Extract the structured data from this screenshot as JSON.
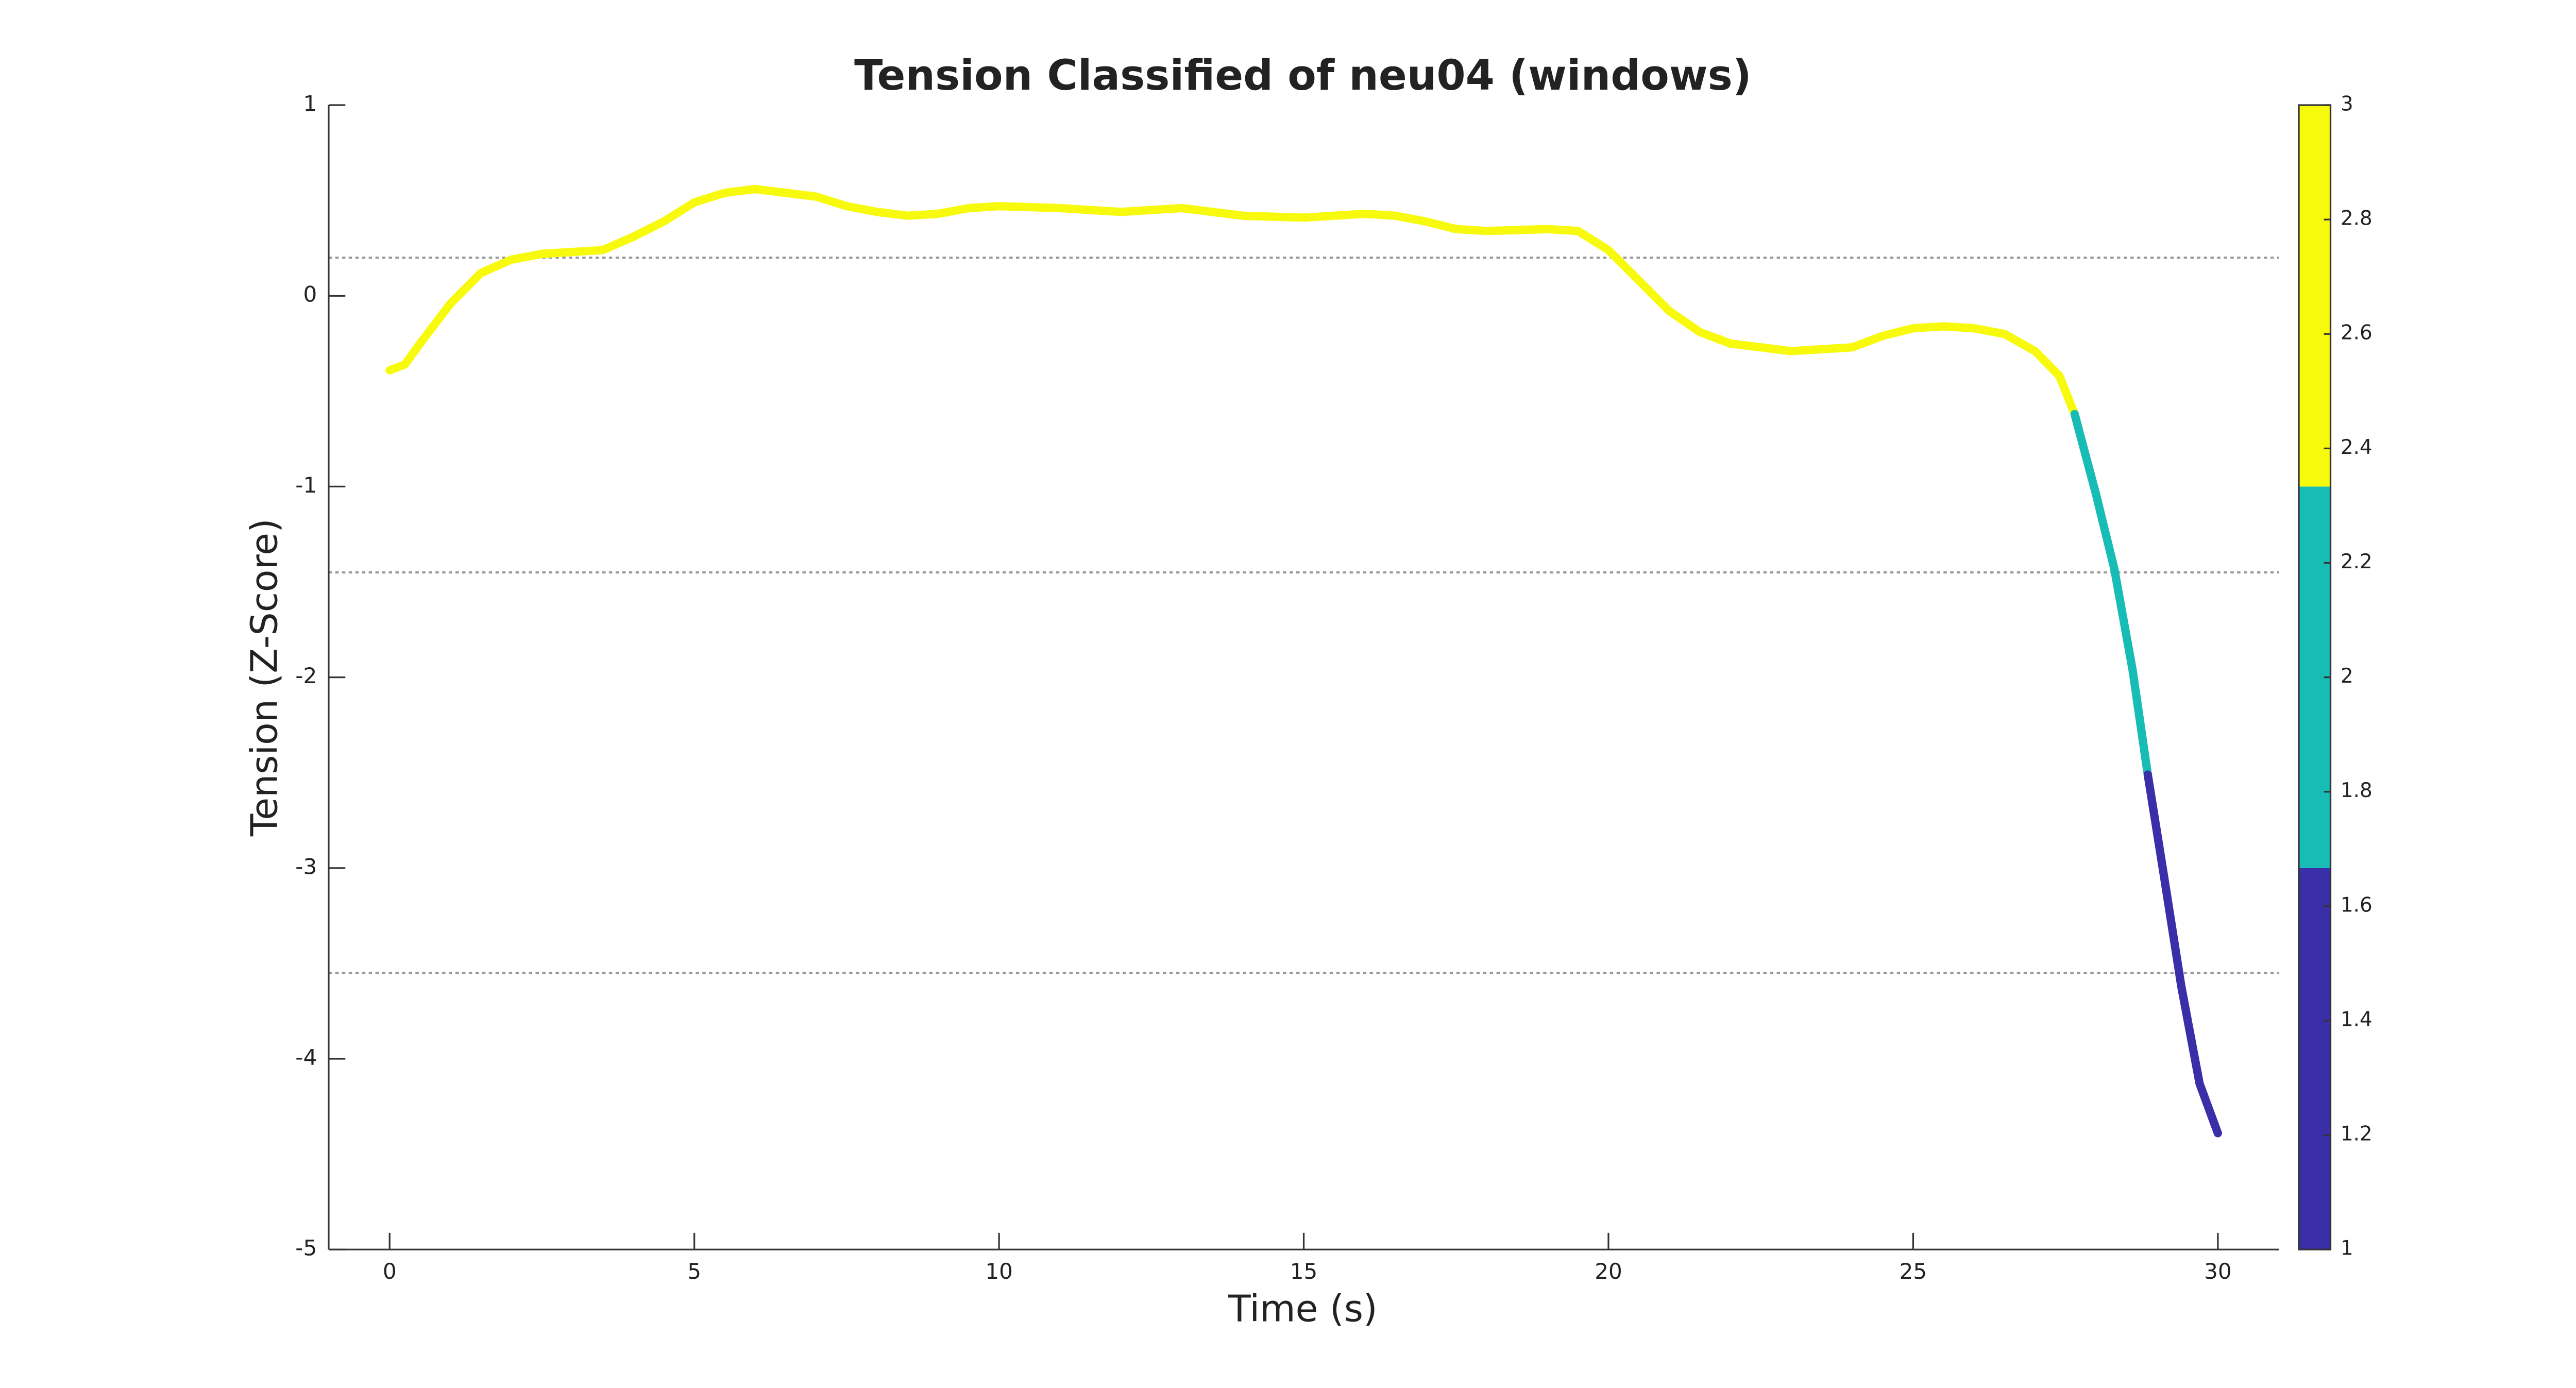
{
  "chart_data": {
    "type": "line",
    "title": "Tension Classified of neu04 (windows)",
    "xlabel": "Time (s)",
    "ylabel": "Tension (Z-Score)",
    "xlim": [
      -1,
      31
    ],
    "xticks": [
      0,
      5,
      10,
      15,
      20,
      25,
      30
    ],
    "ylim": [
      -5,
      1
    ],
    "yticks": [
      -5,
      -4,
      -3,
      -2,
      -1,
      0,
      1
    ],
    "thresholds": [
      0.2,
      -1.45,
      -3.55
    ],
    "series": [
      {
        "color": "#f8fa0d",
        "x": [
          0,
          0.25,
          0.5,
          1,
          1.5,
          2,
          2.5,
          3,
          3.5,
          4,
          4.5,
          5,
          5.5,
          6,
          6.5,
          7,
          7.5,
          8,
          8.5,
          9,
          9.5,
          10,
          11,
          12,
          13,
          14,
          15,
          16,
          16.5,
          17,
          17.5,
          18,
          19,
          19.5,
          20,
          20.5,
          21,
          21.5,
          22,
          23,
          24,
          24.5,
          25,
          25.5,
          26,
          26.5,
          27,
          27.4,
          27.65
        ],
        "values": [
          -0.39,
          -0.36,
          -0.25,
          -0.04,
          0.12,
          0.19,
          0.22,
          0.23,
          0.24,
          0.31,
          0.39,
          0.49,
          0.54,
          0.56,
          0.54,
          0.52,
          0.47,
          0.44,
          0.42,
          0.43,
          0.46,
          0.47,
          0.46,
          0.44,
          0.46,
          0.42,
          0.41,
          0.43,
          0.42,
          0.39,
          0.35,
          0.34,
          0.35,
          0.34,
          0.24,
          0.08,
          -0.08,
          -0.19,
          -0.25,
          -0.29,
          -0.27,
          -0.21,
          -0.17,
          -0.16,
          -0.17,
          -0.2,
          -0.29,
          -0.42,
          -0.62
        ]
      },
      {
        "color": "#17bdb5",
        "x": [
          27.65,
          28,
          28.3,
          28.6,
          28.85
        ],
        "values": [
          -0.62,
          -1.04,
          -1.43,
          -1.96,
          -2.51
        ]
      },
      {
        "color": "#3b2ea9",
        "x": [
          28.85,
          29.1,
          29.4,
          29.7,
          30
        ],
        "values": [
          -2.51,
          -3.01,
          -3.62,
          -4.13,
          -4.39
        ]
      }
    ],
    "colorbar": {
      "lim": [
        1,
        3
      ],
      "ticks": [
        1,
        1.2,
        1.4,
        1.6,
        1.8,
        2,
        2.2,
        2.4,
        2.6,
        2.8,
        3
      ],
      "colors": [
        "#3b2ea9",
        "#17bdb5",
        "#f8fa0d"
      ]
    }
  }
}
